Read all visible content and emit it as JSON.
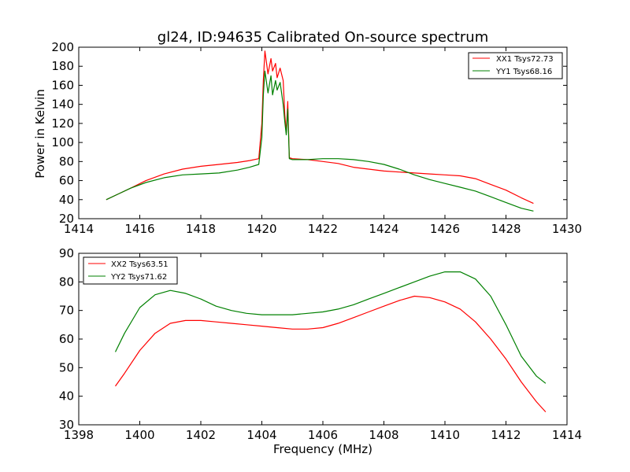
{
  "chart_data": [
    {
      "type": "line",
      "title": "gl24, ID:94635 Calibrated On-source spectrum",
      "xlabel": "",
      "ylabel": "Power in Kelvin",
      "xlim": [
        1414,
        1430
      ],
      "ylim": [
        20,
        200
      ],
      "xticks": [
        1414,
        1416,
        1418,
        1420,
        1422,
        1424,
        1426,
        1428,
        1430
      ],
      "yticks": [
        20,
        40,
        60,
        80,
        100,
        120,
        140,
        160,
        180,
        200
      ],
      "legend_position": "top-right",
      "series": [
        {
          "name": "XX1 Tsys72.73",
          "color": "#ff0000",
          "x": [
            1414.9,
            1415.3,
            1415.7,
            1416.2,
            1416.8,
            1417.4,
            1418.0,
            1418.6,
            1419.2,
            1419.6,
            1419.9,
            1420.0,
            1420.05,
            1420.1,
            1420.2,
            1420.3,
            1420.35,
            1420.45,
            1420.5,
            1420.6,
            1420.7,
            1420.75,
            1420.8,
            1420.85,
            1420.9,
            1421.0,
            1421.5,
            1422.0,
            1422.5,
            1423.0,
            1423.5,
            1424.0,
            1424.5,
            1425.0,
            1425.5,
            1426.0,
            1426.5,
            1427.0,
            1427.5,
            1428.0,
            1428.5,
            1428.9
          ],
          "y": [
            40,
            46,
            52,
            60,
            67,
            72,
            75,
            77,
            79,
            81,
            83,
            120,
            165,
            196,
            172,
            188,
            175,
            183,
            168,
            178,
            165,
            130,
            110,
            143,
            84,
            83,
            82,
            80,
            78,
            74,
            72,
            70,
            69,
            68,
            67,
            66,
            65,
            62,
            56,
            50,
            42,
            36
          ]
        },
        {
          "name": "YY1 Tsys68.16",
          "color": "#008000",
          "x": [
            1414.9,
            1415.3,
            1415.7,
            1416.2,
            1416.8,
            1417.4,
            1418.0,
            1418.6,
            1419.2,
            1419.6,
            1419.9,
            1420.0,
            1420.05,
            1420.1,
            1420.2,
            1420.3,
            1420.35,
            1420.45,
            1420.5,
            1420.6,
            1420.7,
            1420.75,
            1420.8,
            1420.85,
            1420.9,
            1421.0,
            1421.5,
            1422.0,
            1422.5,
            1423.0,
            1423.5,
            1424.0,
            1424.5,
            1425.0,
            1425.5,
            1426.0,
            1426.5,
            1427.0,
            1427.5,
            1428.0,
            1428.5,
            1428.9
          ],
          "y": [
            40,
            46,
            52,
            58,
            63,
            66,
            67,
            68,
            71,
            74,
            77,
            105,
            150,
            175,
            152,
            170,
            150,
            165,
            155,
            163,
            140,
            122,
            108,
            135,
            83,
            82,
            82,
            83,
            83,
            82,
            80,
            77,
            72,
            66,
            61,
            57,
            53,
            49,
            43,
            37,
            31,
            28
          ]
        }
      ]
    },
    {
      "type": "line",
      "title": "",
      "xlabel": "Frequency (MHz)",
      "ylabel": "",
      "xlim": [
        1398,
        1414
      ],
      "ylim": [
        30,
        90
      ],
      "xticks": [
        1398,
        1400,
        1402,
        1404,
        1406,
        1408,
        1410,
        1412,
        1414
      ],
      "yticks": [
        30,
        40,
        50,
        60,
        70,
        80,
        90
      ],
      "legend_position": "top-left",
      "series": [
        {
          "name": "XX2 Tsys63.51",
          "color": "#ff0000",
          "x": [
            1399.2,
            1399.5,
            1400.0,
            1400.5,
            1401.0,
            1401.5,
            1402.0,
            1402.5,
            1403.0,
            1403.5,
            1404.0,
            1404.5,
            1405.0,
            1405.5,
            1406.0,
            1406.5,
            1407.0,
            1407.5,
            1408.0,
            1408.5,
            1409.0,
            1409.5,
            1410.0,
            1410.5,
            1411.0,
            1411.5,
            1412.0,
            1412.5,
            1413.0,
            1413.3
          ],
          "y": [
            43.5,
            48,
            56,
            62,
            65.5,
            66.5,
            66.5,
            66,
            65.5,
            65,
            64.5,
            64,
            63.5,
            63.5,
            64,
            65.5,
            67.5,
            69.5,
            71.5,
            73.5,
            75,
            74.5,
            73,
            70.5,
            66,
            60,
            53,
            45,
            38,
            34.5
          ]
        },
        {
          "name": "YY2 Tsys71.62",
          "color": "#008000",
          "x": [
            1399.2,
            1399.5,
            1400.0,
            1400.5,
            1401.0,
            1401.5,
            1402.0,
            1402.5,
            1403.0,
            1403.5,
            1404.0,
            1404.5,
            1405.0,
            1405.5,
            1406.0,
            1406.5,
            1407.0,
            1407.5,
            1408.0,
            1408.5,
            1409.0,
            1409.5,
            1410.0,
            1410.5,
            1411.0,
            1411.5,
            1412.0,
            1412.5,
            1413.0,
            1413.3
          ],
          "y": [
            55.5,
            62,
            71,
            75.5,
            77,
            76,
            74,
            71.5,
            70,
            69,
            68.5,
            68.5,
            68.5,
            69,
            69.5,
            70.5,
            72,
            74,
            76,
            78,
            80,
            82,
            83.5,
            83.5,
            81,
            75,
            65,
            54,
            47,
            44.5
          ]
        }
      ]
    }
  ]
}
